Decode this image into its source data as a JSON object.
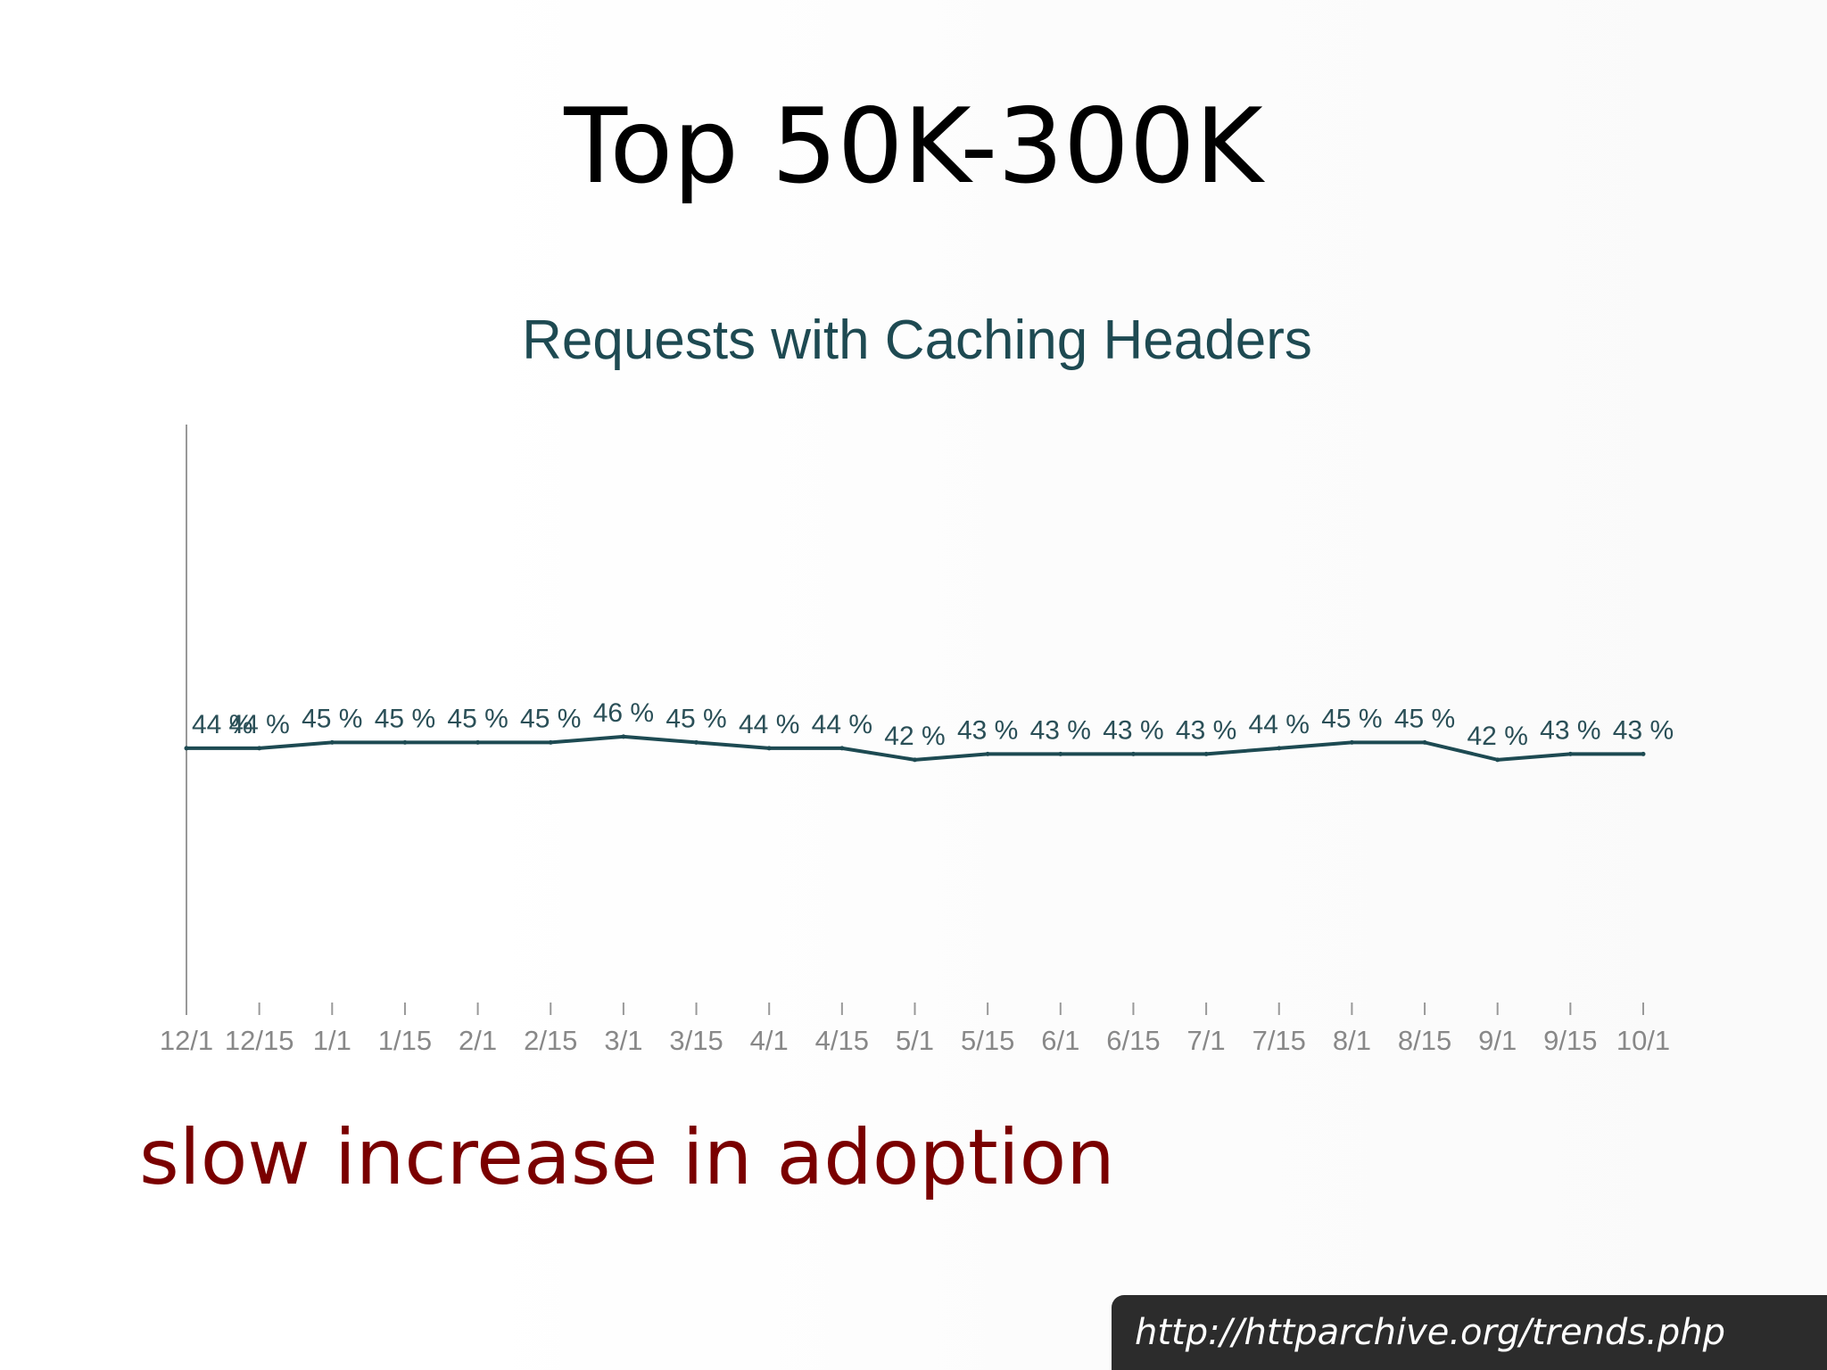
{
  "slide": {
    "title": "Top 50K-300K",
    "caption": "slow increase in adoption",
    "source_url": "http://httparchive.org/trends.php"
  },
  "chart_data": {
    "type": "line",
    "title": "Requests with Caching Headers",
    "xlabel": "",
    "ylabel": "",
    "ylim": [
      0,
      100
    ],
    "grid": false,
    "legend": "none",
    "x": [
      "12/1",
      "12/15",
      "1/1",
      "1/15",
      "2/1",
      "2/15",
      "3/1",
      "3/15",
      "4/1",
      "4/15",
      "5/1",
      "5/15",
      "6/1",
      "6/15",
      "7/1",
      "7/15",
      "8/1",
      "8/15",
      "9/1",
      "9/15",
      "10/1"
    ],
    "series": [
      {
        "values": [
          44,
          44,
          45,
          45,
          45,
          45,
          46,
          45,
          44,
          44,
          42,
          43,
          43,
          43,
          43,
          44,
          45,
          45,
          42,
          43,
          43
        ],
        "data_labels": [
          "44 %",
          "44 %",
          "45 %",
          "45 %",
          "45 %",
          "45 %",
          "46 %",
          "45 %",
          "44 %",
          "44 %",
          "42 %",
          "43 %",
          "43 %",
          "43 %",
          "43 %",
          "44 %",
          "45 %",
          "45 %",
          "42 %",
          "43 %",
          "43 %"
        ],
        "color": "#1d4a52"
      }
    ],
    "colors": {
      "title": "#1e4a52",
      "axis": "#999999",
      "tick_label": "#888888",
      "data_label": "#2a4f57"
    }
  }
}
